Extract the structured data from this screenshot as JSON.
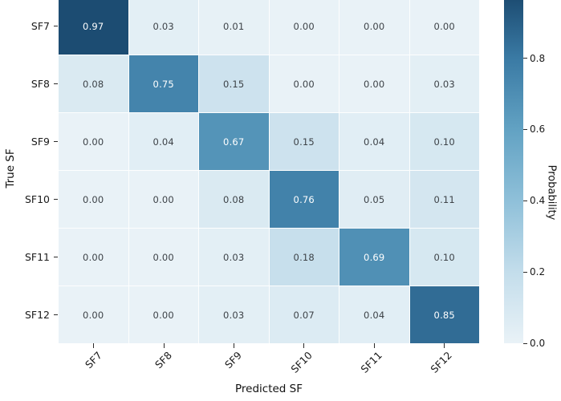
{
  "chart_data": {
    "type": "heatmap",
    "title": "",
    "xlabel": "Predicted SF",
    "ylabel": "True SF",
    "colorbar_label": "Probability",
    "x_categories": [
      "SF7",
      "SF8",
      "SF9",
      "SF10",
      "SF11",
      "SF12"
    ],
    "y_categories": [
      "SF7",
      "SF8",
      "SF9",
      "SF10",
      "SF11",
      "SF12"
    ],
    "matrix": [
      [
        0.97,
        0.03,
        0.01,
        0.0,
        0.0,
        0.0
      ],
      [
        0.08,
        0.75,
        0.15,
        0.0,
        0.0,
        0.03
      ],
      [
        0.0,
        0.04,
        0.67,
        0.15,
        0.04,
        0.1
      ],
      [
        0.0,
        0.0,
        0.08,
        0.76,
        0.05,
        0.11
      ],
      [
        0.0,
        0.0,
        0.03,
        0.18,
        0.69,
        0.1
      ],
      [
        0.0,
        0.0,
        0.03,
        0.07,
        0.04,
        0.85
      ]
    ],
    "value_decimals": 2,
    "vmin": 0.0,
    "vmax": 0.97,
    "colorbar_ticks": [
      0.8,
      0.6,
      0.4,
      0.2,
      0.0
    ],
    "colorbar_tick_decimals": 1,
    "legend_position": "right",
    "grid": true,
    "x_tick_rotation_deg": -45,
    "colormap_stops": [
      {
        "pos": 0.0,
        "color": "#e9f2f7"
      },
      {
        "pos": 0.2,
        "color": "#c3ddeb"
      },
      {
        "pos": 0.4,
        "color": "#8fc0d9"
      },
      {
        "pos": 0.6,
        "color": "#62a2c3"
      },
      {
        "pos": 0.8,
        "color": "#3a7aa4"
      },
      {
        "pos": 0.97,
        "color": "#1c4c72"
      }
    ],
    "annotation_colors": {
      "on_dark": "#ffffff",
      "on_light": "#3d4247"
    },
    "tick_color": "#2b2b2b"
  }
}
